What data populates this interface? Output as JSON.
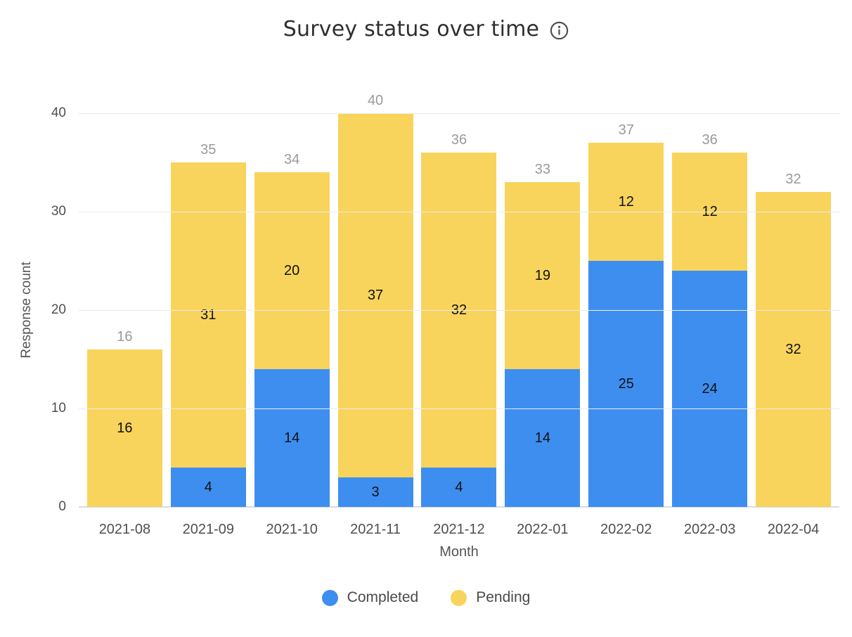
{
  "header": {
    "title": "Survey status over time"
  },
  "chart_data": {
    "type": "bar",
    "stacked": true,
    "title": "Survey status over time",
    "xlabel": "Month",
    "ylabel": "Response count",
    "categories": [
      "2021-08",
      "2021-09",
      "2021-10",
      "2021-11",
      "2021-12",
      "2022-01",
      "2022-02",
      "2022-03",
      "2022-04"
    ],
    "series": [
      {
        "name": "Completed",
        "color": "#3E8EF0",
        "values": [
          0,
          4,
          14,
          3,
          4,
          14,
          25,
          24,
          0
        ]
      },
      {
        "name": "Pending",
        "color": "#F8D45C",
        "values": [
          16,
          31,
          20,
          37,
          32,
          19,
          12,
          12,
          32
        ]
      }
    ],
    "totals": [
      16,
      35,
      34,
      40,
      36,
      33,
      37,
      36,
      32
    ],
    "ylim": [
      0,
      40
    ],
    "yticks": [
      0,
      10,
      20,
      30,
      40
    ],
    "grid": true,
    "legend_position": "bottom",
    "colors": {
      "completed": "#3E8EF0",
      "pending": "#F8D45C",
      "gridline": "#ececec",
      "axis_baseline": "#d7dce5",
      "total_label": "#9a9a9a",
      "segment_label": "#111111",
      "axis_text": "#4f4f4f",
      "title_text": "#2f2f2f"
    }
  }
}
